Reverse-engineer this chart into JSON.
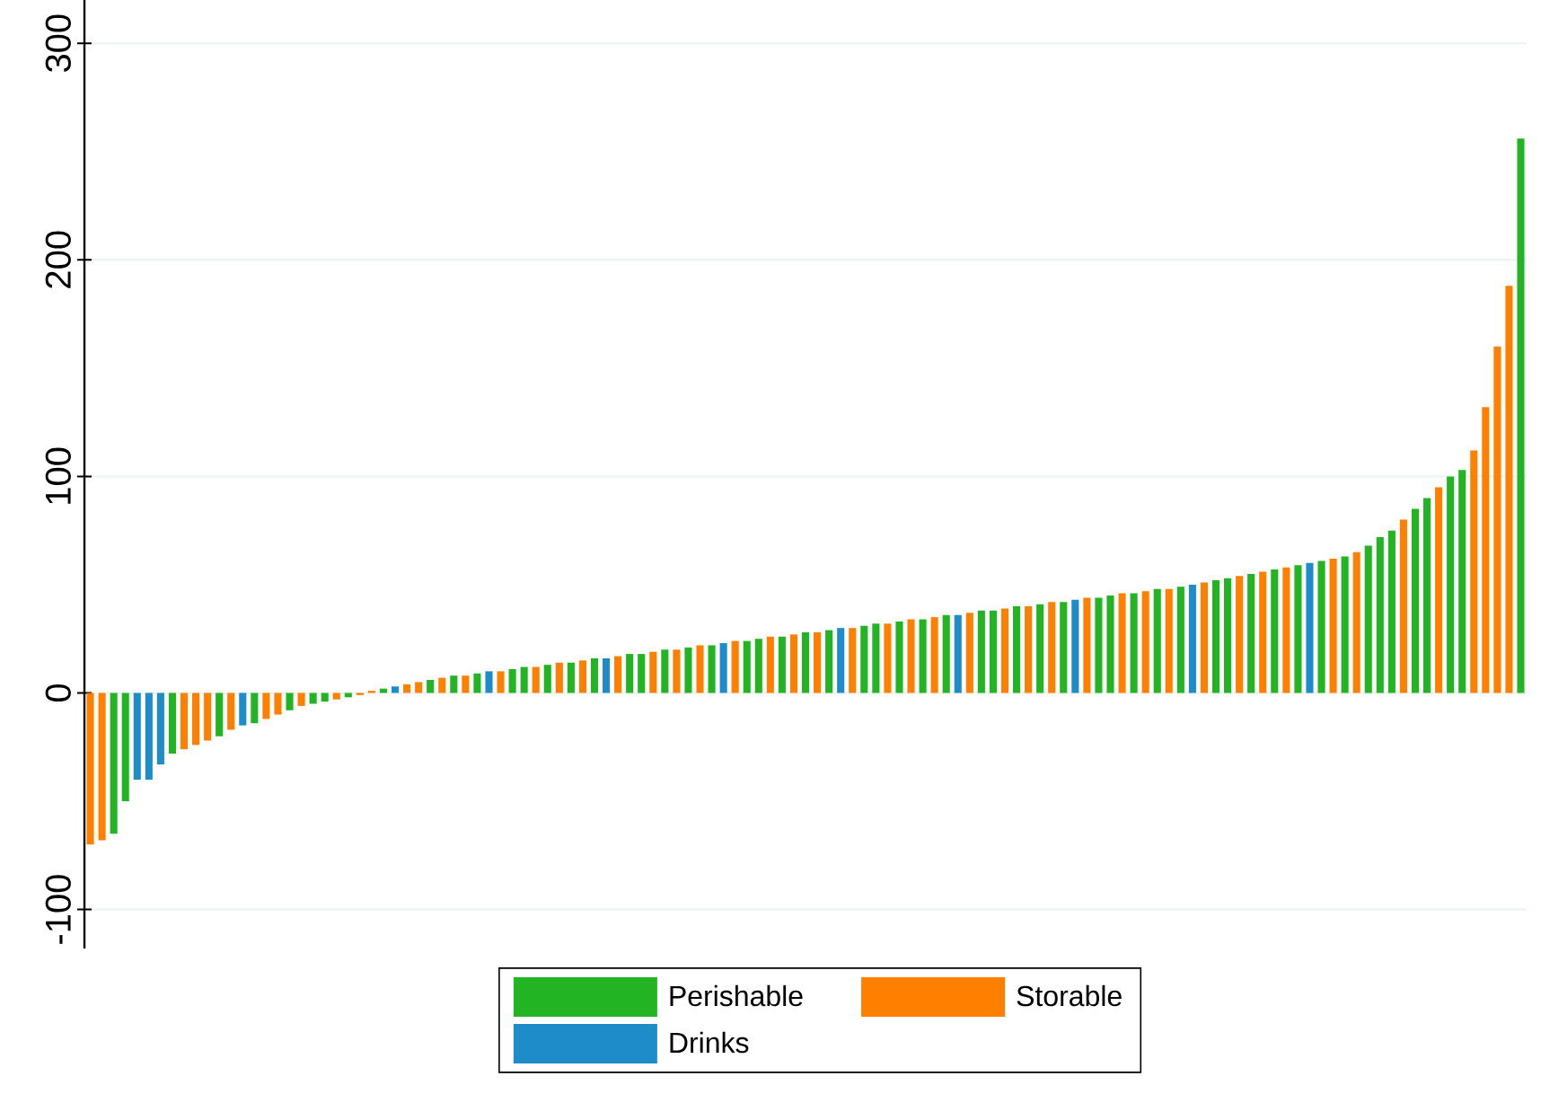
{
  "chart_data": {
    "type": "bar",
    "legend": "bottom",
    "grid": "y",
    "tick_labels": "y",
    "ylim": [
      -118,
      320
    ],
    "yticks": [
      -100,
      0,
      100,
      200,
      300
    ],
    "categories": [
      null,
      null,
      null,
      null,
      null,
      null,
      null,
      null,
      null,
      null,
      null,
      null,
      null,
      null,
      null,
      null,
      null,
      null,
      null,
      null,
      null,
      null,
      null,
      null,
      null,
      null,
      null,
      null,
      null,
      null,
      null,
      null,
      null,
      null,
      null,
      null,
      null,
      null,
      null,
      null,
      null,
      null,
      null,
      null,
      null,
      null,
      null,
      null,
      null,
      null,
      null,
      null,
      null,
      null,
      null,
      null,
      null,
      null,
      null,
      null,
      null,
      null,
      null,
      null,
      null,
      null,
      null,
      null,
      null,
      null,
      null,
      null,
      null,
      null,
      null,
      null,
      null,
      null,
      null,
      null,
      null,
      null,
      null,
      null,
      null,
      null,
      null,
      null,
      null,
      null,
      null,
      null,
      null,
      null,
      null,
      null,
      null,
      null,
      null,
      null,
      null,
      null,
      null,
      null,
      null,
      null,
      null,
      null,
      null,
      null,
      null,
      null,
      null,
      null,
      null,
      null,
      null,
      null,
      null,
      null,
      null,
      null,
      null
    ],
    "series": [
      {
        "name": "Perishable",
        "color": "#22b422",
        "values": [
          null,
          null,
          -65,
          -50,
          null,
          null,
          null,
          -28,
          null,
          null,
          null,
          -20,
          null,
          null,
          -14,
          null,
          null,
          -8,
          null,
          -5,
          -4,
          null,
          -2,
          null,
          null,
          2,
          null,
          null,
          null,
          6,
          null,
          8,
          null,
          9,
          null,
          null,
          11,
          12,
          null,
          13,
          null,
          14,
          null,
          16,
          null,
          null,
          18,
          18,
          null,
          20,
          null,
          21,
          null,
          22,
          null,
          null,
          24,
          25,
          null,
          26,
          null,
          28,
          null,
          29,
          null,
          null,
          31,
          32,
          null,
          33,
          null,
          34,
          null,
          36,
          null,
          null,
          38,
          38,
          null,
          40,
          null,
          41,
          null,
          42,
          null,
          null,
          44,
          45,
          null,
          46,
          null,
          48,
          null,
          49,
          null,
          null,
          52,
          53,
          null,
          55,
          null,
          57,
          null,
          59,
          null,
          61,
          null,
          63,
          null,
          68,
          72,
          75,
          null,
          85,
          90,
          null,
          100,
          103,
          null,
          null,
          null,
          null,
          256
        ]
      },
      {
        "name": "Storable",
        "color": "#ff8000",
        "values": [
          -70,
          -68,
          null,
          null,
          null,
          null,
          null,
          null,
          -26,
          -24,
          -22,
          null,
          -17,
          null,
          null,
          -12,
          -10,
          null,
          -6,
          null,
          null,
          -3,
          null,
          -1,
          1,
          null,
          null,
          4,
          5,
          null,
          7,
          null,
          8,
          null,
          null,
          10,
          null,
          null,
          12,
          null,
          14,
          null,
          15,
          null,
          null,
          17,
          null,
          null,
          19,
          null,
          20,
          null,
          22,
          null,
          null,
          24,
          null,
          null,
          26,
          null,
          27,
          null,
          28,
          null,
          null,
          30,
          null,
          null,
          32,
          null,
          34,
          null,
          35,
          null,
          null,
          37,
          null,
          null,
          39,
          null,
          40,
          null,
          42,
          null,
          null,
          44,
          null,
          null,
          46,
          null,
          47,
          null,
          48,
          null,
          null,
          51,
          null,
          null,
          54,
          null,
          56,
          null,
          58,
          null,
          null,
          null,
          62,
          null,
          65,
          null,
          null,
          null,
          80,
          null,
          null,
          95,
          null,
          null,
          112,
          132,
          160,
          188,
          null
        ]
      },
      {
        "name": "Drinks",
        "color": "#1e8cc8",
        "values": [
          null,
          null,
          null,
          null,
          -40,
          -40,
          -33,
          null,
          null,
          null,
          null,
          null,
          null,
          -15,
          null,
          null,
          null,
          null,
          null,
          null,
          null,
          null,
          null,
          null,
          null,
          null,
          3,
          null,
          null,
          null,
          null,
          null,
          null,
          null,
          10,
          null,
          null,
          null,
          null,
          null,
          null,
          null,
          null,
          null,
          16,
          null,
          null,
          null,
          null,
          null,
          null,
          null,
          null,
          null,
          23,
          null,
          null,
          null,
          null,
          null,
          null,
          null,
          null,
          null,
          30,
          null,
          null,
          null,
          null,
          null,
          null,
          null,
          null,
          null,
          36,
          null,
          null,
          null,
          null,
          null,
          null,
          null,
          null,
          null,
          43,
          null,
          null,
          null,
          null,
          null,
          null,
          null,
          null,
          null,
          50,
          null,
          null,
          null,
          null,
          null,
          null,
          null,
          null,
          null,
          60,
          null,
          null,
          null,
          null,
          null,
          null,
          null,
          null,
          null,
          null,
          null,
          null,
          null,
          null,
          null,
          null,
          null,
          null
        ]
      }
    ]
  }
}
